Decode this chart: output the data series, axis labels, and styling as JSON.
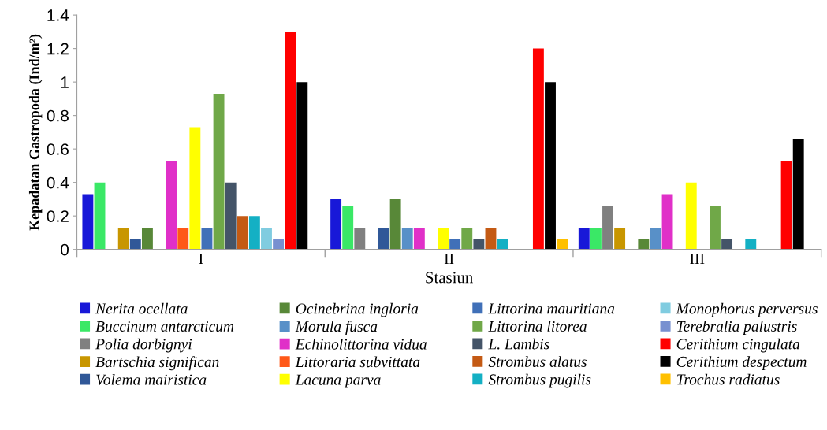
{
  "chart_data": {
    "type": "bar",
    "xlabel": "Stasiun",
    "ylabel": "Kepadatan Gastropoda (Ind/m²)",
    "categories": [
      "I",
      "II",
      "III"
    ],
    "ylim": [
      0,
      1.4
    ],
    "yticks": [
      0,
      0.2,
      0.4,
      0.6,
      0.8,
      {
        "value": 1,
        "label": "1"
      },
      1.2,
      1.4
    ],
    "grid": false,
    "legend": "bottom",
    "series": [
      {
        "name": "Nerita ocellata",
        "color": "#1818d8",
        "values": [
          0.33,
          0.3,
          0.13
        ]
      },
      {
        "name": "Buccinum antarcticum",
        "color": "#3ae866",
        "values": [
          0.4,
          0.26,
          0.13
        ]
      },
      {
        "name": "Polia dorbignyi",
        "color": "#808080",
        "values": [
          0,
          0.13,
          0.26
        ]
      },
      {
        "name": "Bartschia significan",
        "color": "#c89600",
        "values": [
          0.13,
          0,
          0.13
        ]
      },
      {
        "name": "Volema mairistica",
        "color": "#305898",
        "values": [
          0.06,
          0.13,
          0
        ]
      },
      {
        "name": "Ocinebrina ingloria",
        "color": "#588838",
        "values": [
          0.13,
          0.3,
          0.06
        ]
      },
      {
        "name": "Morula fusca",
        "color": "#5890c8",
        "values": [
          0,
          0.13,
          0.13
        ]
      },
      {
        "name": "Echinolittorina vidua",
        "color": "#e030c8",
        "values": [
          0.53,
          0.13,
          0.33
        ]
      },
      {
        "name": "Littoraria subvittata",
        "color": "#ff5818",
        "values": [
          0.13,
          0,
          0
        ]
      },
      {
        "name": "Lacuna parva",
        "color": "#ffff00",
        "values": [
          0.73,
          0.13,
          0.4
        ]
      },
      {
        "name": "Littorina mauritiana",
        "color": "#4070b8",
        "values": [
          0.13,
          0.06,
          0
        ]
      },
      {
        "name": "Littorina litorea",
        "color": "#70a848",
        "values": [
          0.93,
          0.13,
          0.26
        ]
      },
      {
        "name": "L. Lambis",
        "color": "#445468",
        "values": [
          0.4,
          0.06,
          0.06
        ]
      },
      {
        "name": "Strombus alatus",
        "color": "#c45a14",
        "values": [
          0.2,
          0.13,
          0
        ]
      },
      {
        "name": "Strombus pugilis",
        "color": "#14b0c4",
        "values": [
          0.2,
          0.06,
          0.06
        ]
      },
      {
        "name": "Monophorus perversus",
        "color": "#80cce0",
        "values": [
          0.13,
          0,
          0
        ]
      },
      {
        "name": "Terebralia palustris",
        "color": "#7890d0",
        "values": [
          0.06,
          0,
          0
        ]
      },
      {
        "name": "Cerithium cingulata",
        "color": "#ff0000",
        "values": [
          1.3,
          1.2,
          0.53
        ]
      },
      {
        "name": "Cerithium despectum",
        "color": "#000000",
        "values": [
          1.0,
          1.0,
          0.66
        ]
      },
      {
        "name": "Trochus radiatus",
        "color": "#ffc000",
        "values": [
          0,
          0.06,
          0
        ]
      }
    ]
  }
}
